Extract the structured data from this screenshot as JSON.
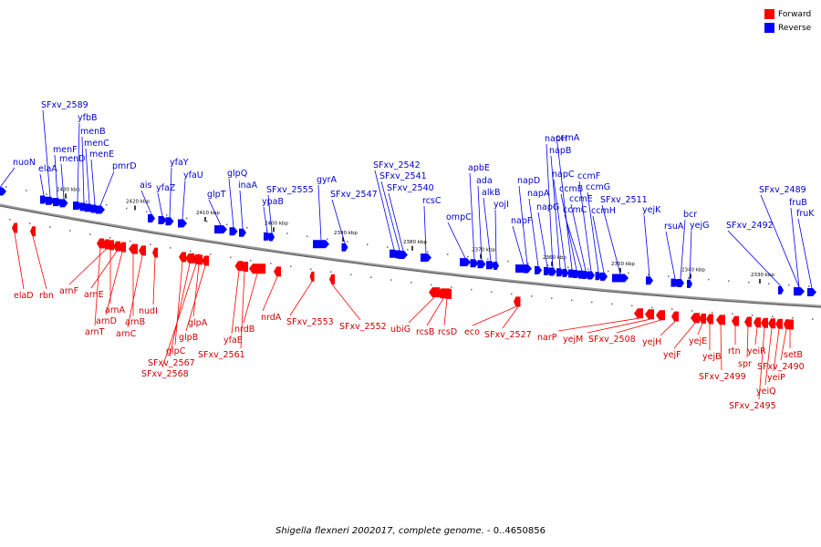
{
  "legend": {
    "forward_label": "Forward",
    "reverse_label": "Reverse",
    "forward_color": "#ff0000",
    "reverse_color": "#0000ff"
  },
  "caption": {
    "organism": "Shigella flexneri 2002017, complete genome.",
    "range": " - 0..4650856"
  },
  "scale_ticks": [
    "2430 kbp",
    "2420 kbp",
    "2410 kbp",
    "2400 kbp",
    "2390 kbp",
    "2380 kbp",
    "2370 kbp",
    "2360 kbp",
    "2350 kbp",
    "2340 kbp",
    "2330 kbp"
  ],
  "reverse_genes": [
    "nuoN",
    "SFxv_2589",
    "elaA",
    "menF",
    "menD",
    "yfbB",
    "menB",
    "menC",
    "menE",
    "pmrD",
    "ais",
    "yfaZ",
    "yfaY",
    "yfaU",
    "glpT",
    "glpQ",
    "inaA",
    "SFxv_2555",
    "ypaB",
    "gyrA",
    "SFxv_2547",
    "SFxv_2542",
    "SFxv_2541",
    "SFxv_2540",
    "rcsC",
    "ompC",
    "apbE",
    "ada",
    "alkB",
    "yojI",
    "napF",
    "napD",
    "napA",
    "napG",
    "napH",
    "napB",
    "napC",
    "ccmA",
    "ccmB",
    "ccmC",
    "ccmE",
    "ccmF",
    "ccmG",
    "ccmH",
    "SFxv_2511",
    "yejK",
    "rsuA",
    "bcr",
    "yejG",
    "SFxv_2492",
    "SFxv_2489",
    "fruB",
    "fruK"
  ],
  "forward_genes": [
    "elaD",
    "rbn",
    "arnF",
    "arnE",
    "arnT",
    "arnA",
    "arnD",
    "arnB",
    "arnC",
    "nudI",
    "glpC",
    "SFxv_2567",
    "SFxv_2568",
    "glpB",
    "glpA",
    "yfaE",
    "SFxv_2561",
    "nrdB",
    "nrdA",
    "SFxv_2553",
    "SFxv_2552",
    "ubiG",
    "rcsB",
    "rcsD",
    "eco",
    "SFxv_2527",
    "narP",
    "yejM",
    "SFxv_2508",
    "yejH",
    "yejF",
    "yejE",
    "yejB",
    "SFxv_2499",
    "rtn",
    "spr",
    "yeiR",
    "SFxv_2495",
    "yeiQ",
    "yeiP",
    "SFxv_2490",
    "setB"
  ]
}
